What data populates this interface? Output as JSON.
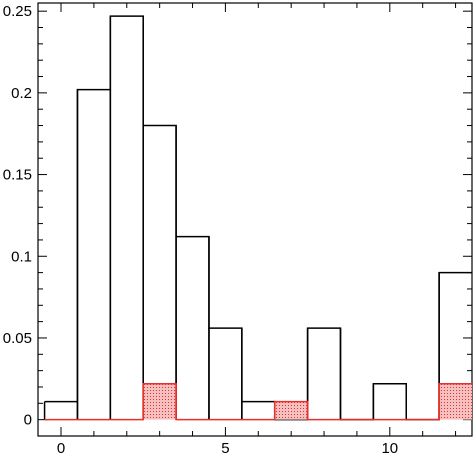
{
  "chart_data": {
    "type": "bar",
    "style": "step-histogram",
    "title": "",
    "xlabel": "",
    "ylabel": "",
    "xlim": [
      -0.7,
      12.5
    ],
    "ylim": [
      -0.01,
      0.255
    ],
    "grid": false,
    "x_ticks": [
      {
        "value": 0,
        "label": "0"
      },
      {
        "value": 5,
        "label": "5"
      },
      {
        "value": 10,
        "label": "10"
      }
    ],
    "y_ticks": [
      {
        "value": 0,
        "label": "0"
      },
      {
        "value": 0.05,
        "label": "0.05"
      },
      {
        "value": 0.1,
        "label": "0.1"
      },
      {
        "value": 0.15,
        "label": "0.15"
      },
      {
        "value": 0.2,
        "label": "0.2"
      },
      {
        "value": 0.25,
        "label": "0.25"
      }
    ],
    "bin_edges": [
      -0.5,
      0.5,
      1.5,
      2.5,
      3.5,
      4.5,
      5.5,
      6.5,
      7.5,
      8.5,
      9.5,
      10.5,
      11.5,
      12.5
    ],
    "series": [
      {
        "color": "#000000",
        "fill": "none",
        "values": [
          0.011,
          0.202,
          0.247,
          0.18,
          0.112,
          0.056,
          0.011,
          0.0,
          0.056,
          0.0,
          0.022,
          0.0,
          0.09
        ]
      },
      {
        "color": "#e8302a",
        "fill": "#f2a0a0",
        "values": [
          0.0,
          0.0,
          0.0,
          0.022,
          0.0,
          0.0,
          0.0,
          0.011,
          0.0,
          0.0,
          0.0,
          0.0,
          0.022
        ]
      }
    ]
  }
}
